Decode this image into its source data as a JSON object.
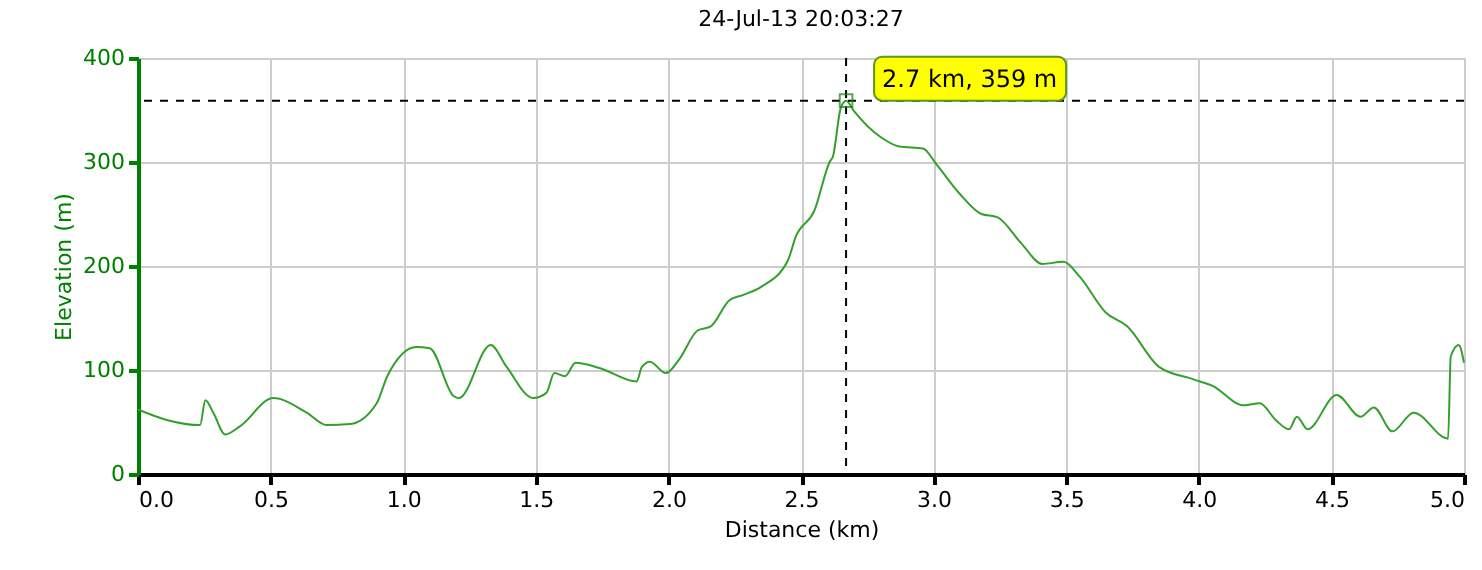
{
  "chart_data": {
    "type": "line",
    "title": "24-Jul-13 20:03:27",
    "xlabel": "Distance (km)",
    "ylabel": "Elevation (m)",
    "x": [
      0,
      0.108,
      0.234,
      0.254,
      0.284,
      0.329,
      0.385,
      0.51,
      0.636,
      0.711,
      0.8,
      0.9,
      0.94,
      1.05,
      1.1,
      1.19,
      1.21,
      1.33,
      1.39,
      1.49,
      1.54,
      1.57,
      1.61,
      1.65,
      1.74,
      1.88,
      1.9,
      1.93,
      1.99,
      2.04,
      2.11,
      2.16,
      2.23,
      2.28,
      2.35,
      2.45,
      2.48,
      2.55,
      2.61,
      2.62,
      2.65,
      2.67,
      2.7,
      2.8,
      2.87,
      2.96,
      3.01,
      3.1,
      3.18,
      3.24,
      3.33,
      3.41,
      3.49,
      3.55,
      3.65,
      3.73,
      3.85,
      3.98,
      4.05,
      4.17,
      4.23,
      4.29,
      4.34,
      4.37,
      4.41,
      4.52,
      4.61,
      4.66,
      4.73,
      4.81,
      4.94,
      4.95,
      4.98,
      5.0
    ],
    "series": [
      {
        "color": "#33a02c",
        "values": [
          62,
          52,
          47,
          71,
          59,
          38,
          46,
          73,
          59,
          47,
          48,
          68,
          94,
          122,
          121,
          75,
          73,
          124,
          103,
          73,
          78,
          97,
          94,
          107,
          102,
          89,
          103,
          108,
          97,
          110,
          138,
          142,
          167,
          172,
          180,
          205,
          228,
          253,
          301,
          305,
          352,
          359,
          349,
          324,
          315,
          313,
          298,
          269,
          250,
          247,
          222,
          202,
          204,
          190,
          155,
          142,
          103,
          91,
          85,
          66,
          68,
          52,
          43,
          55,
          43,
          76,
          55,
          64,
          41,
          59,
          34,
          113,
          124,
          107
        ]
      }
    ],
    "xlim": [
      0,
      5
    ],
    "ylim": [
      0,
      400
    ],
    "xticks": [
      {
        "value": 0,
        "label": "0.0"
      },
      0.5,
      {
        "value": 1,
        "label": "1.0"
      },
      1.5,
      {
        "value": 2,
        "label": "2.0"
      },
      2.5,
      {
        "value": 3,
        "label": "3.0"
      },
      3.5,
      {
        "value": 4,
        "label": "4.0"
      },
      4.5,
      {
        "value": 5,
        "label": "5.0"
      }
    ],
    "yticks": [
      0,
      100,
      200,
      300,
      400
    ],
    "grid": true,
    "line_style": "solid",
    "marker": "none",
    "ref_lines": [
      {
        "axis": "x",
        "value": 2.67,
        "color": "#000000",
        "line_style": "dashed"
      },
      {
        "axis": "y",
        "value": 359,
        "color": "#000000",
        "line_style": "dashed"
      }
    ],
    "annotations": [
      {
        "text": "2.7 km, 359 m",
        "x": 2.67,
        "y": 359
      }
    ]
  }
}
